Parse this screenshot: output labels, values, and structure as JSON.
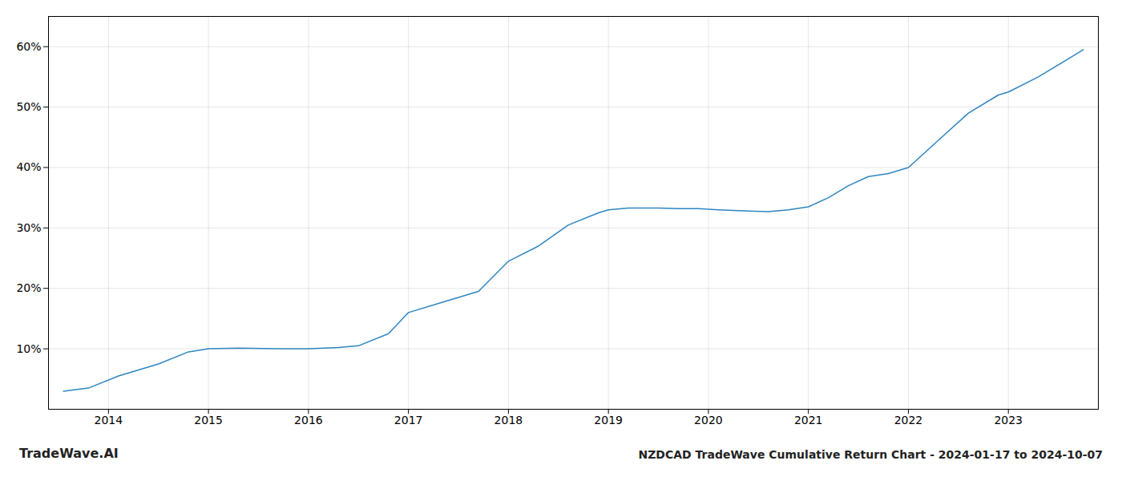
{
  "chart_data": {
    "type": "line",
    "title": "NZDCAD TradeWave Cumulative Return Chart - 2024-01-17 to 2024-10-07",
    "annotations": [
      "TradeWave.AI"
    ],
    "x": [
      2013.55,
      2013.8,
      2014.1,
      2014.5,
      2014.8,
      2015.0,
      2015.3,
      2015.7,
      2016.0,
      2016.3,
      2016.5,
      2016.8,
      2017.0,
      2017.3,
      2017.7,
      2018.0,
      2018.3,
      2018.6,
      2018.9,
      2019.0,
      2019.2,
      2019.5,
      2019.7,
      2019.9,
      2020.1,
      2020.4,
      2020.6,
      2020.8,
      2021.0,
      2021.2,
      2021.4,
      2021.6,
      2021.8,
      2022.0,
      2022.3,
      2022.6,
      2022.9,
      2023.0,
      2023.3,
      2023.6,
      2023.75
    ],
    "values": [
      3.0,
      3.5,
      5.5,
      7.5,
      9.5,
      10.0,
      10.1,
      10.0,
      10.0,
      10.2,
      10.5,
      12.5,
      16.0,
      17.5,
      19.5,
      24.5,
      27.0,
      30.5,
      32.5,
      33.0,
      33.3,
      33.3,
      33.2,
      33.2,
      33.0,
      32.8,
      32.7,
      33.0,
      33.5,
      35.0,
      37.0,
      38.5,
      39.0,
      40.0,
      44.5,
      49.0,
      52.0,
      52.5,
      55.0,
      58.0,
      59.5
    ],
    "color": "#2e86c1",
    "xlim": [
      2013.4,
      2023.9
    ],
    "xticks": [
      2014,
      2015,
      2016,
      2017,
      2018,
      2019,
      2020,
      2021,
      2022,
      2023
    ],
    "ylim": [
      0,
      65
    ],
    "yticks": [
      {
        "value": 10,
        "label": "10%"
      },
      {
        "value": 20,
        "label": "20%"
      },
      {
        "value": 30,
        "label": "30%"
      },
      {
        "value": 40,
        "label": "40%"
      },
      {
        "value": 50,
        "label": "50%"
      },
      {
        "value": 60,
        "label": "60%"
      }
    ],
    "grid": true
  }
}
